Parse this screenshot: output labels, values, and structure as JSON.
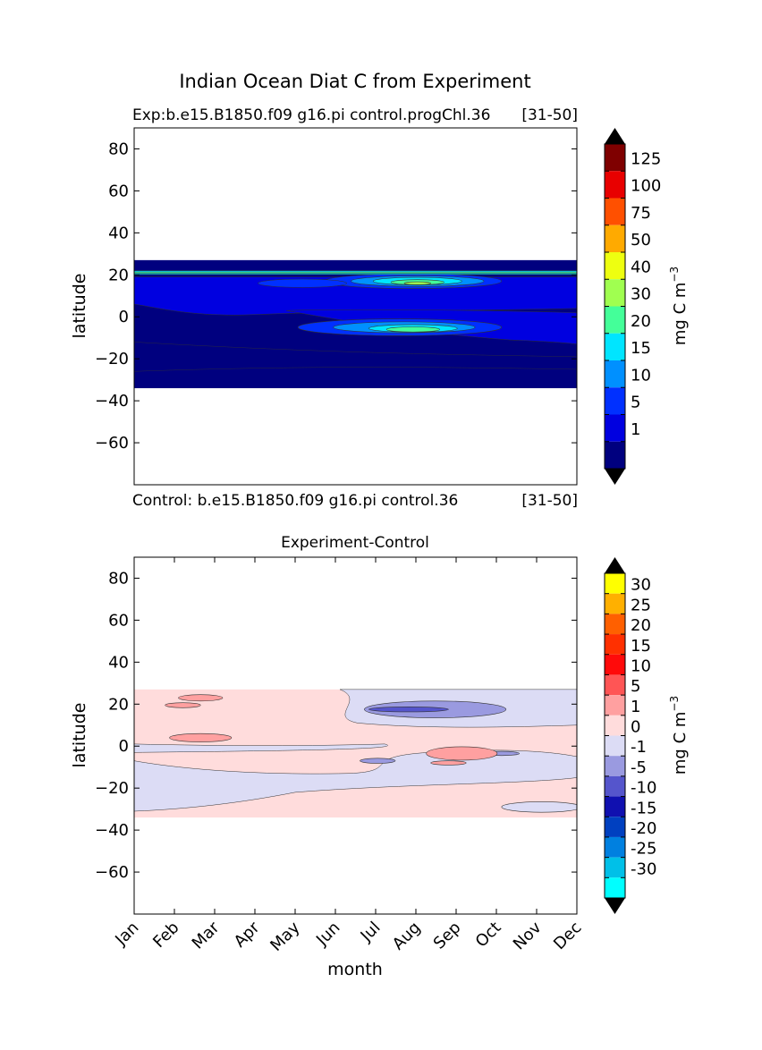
{
  "suptitle": "Indian Ocean Diat C from Experiment",
  "chart_data": [
    {
      "type": "heatmap",
      "title_left": "Exp:b.e15.B1850.f09 g16.pi control.progChl.36",
      "title_right": "[31-50]",
      "subtitle_left": "Control: b.e15.B1850.f09 g16.pi control.36",
      "subtitle_right": "[31-50]",
      "xlabel": "",
      "ylabel": "latitude",
      "ylim": [
        -80,
        90
      ],
      "yticks": [
        80,
        60,
        40,
        20,
        0,
        -20,
        -40,
        -60
      ],
      "ytick_labels": [
        "80",
        "60",
        "40",
        "20",
        "0",
        "−20",
        "−40",
        "−60"
      ],
      "data_lat_range": [
        -34,
        27
      ],
      "colorbar": {
        "label": "mg C m",
        "label_exp": "−3",
        "levels": [
          "1",
          "5",
          "10",
          "15",
          "20",
          "30",
          "40",
          "50",
          "75",
          "100",
          "125"
        ],
        "colors": [
          "#00007f",
          "#0000e0",
          "#0030ff",
          "#0090ff",
          "#00e5ff",
          "#44ff99",
          "#a0ff50",
          "#eeff10",
          "#ffaa00",
          "#ff5000",
          "#e80000",
          "#7f0000"
        ],
        "extend": "both",
        "over_color": "#000000",
        "under_color": "#000000"
      },
      "features": [
        {
          "level": "30",
          "desc": "band near 21N",
          "lat": 21
        },
        {
          "level": "40",
          "desc": "max near 16N Aug-Sep",
          "lat": 16
        },
        {
          "level": "30",
          "desc": "max near -6 Aug-Sep",
          "lat": -6
        }
      ]
    },
    {
      "type": "heatmap",
      "title": "Experiment-Control",
      "xlabel": "month",
      "ylabel": "latitude",
      "ylim": [
        -80,
        90
      ],
      "yticks": [
        80,
        60,
        40,
        20,
        0,
        -20,
        -40,
        -60
      ],
      "ytick_labels": [
        "80",
        "60",
        "40",
        "20",
        "0",
        "−20",
        "−40",
        "−60"
      ],
      "xtick_labels": [
        "Jan",
        "Feb",
        "Mar",
        "Apr",
        "May",
        "Jun",
        "Jul",
        "Aug",
        "Sep",
        "Oct",
        "Nov",
        "Dec"
      ],
      "data_lat_range": [
        -34,
        27
      ],
      "colorbar": {
        "label": "mg C m",
        "label_exp": "−3",
        "levels": [
          "30",
          "25",
          "20",
          "15",
          "10",
          "5",
          "1",
          "0",
          "-1",
          "-5",
          "-10",
          "-15",
          "-20",
          "-25",
          "-30"
        ],
        "colors": [
          "#ffff00",
          "#ffb000",
          "#ff6000",
          "#ff3000",
          "#ff0a0a",
          "#ff5555",
          "#ffa0a0",
          "#ffdcdc",
          "#dcdcf5",
          "#9a9ae0",
          "#5555cc",
          "#1010b0",
          "#0040c0",
          "#0080e0",
          "#00c0e8",
          "#00ffff"
        ],
        "extend": "both"
      }
    }
  ]
}
